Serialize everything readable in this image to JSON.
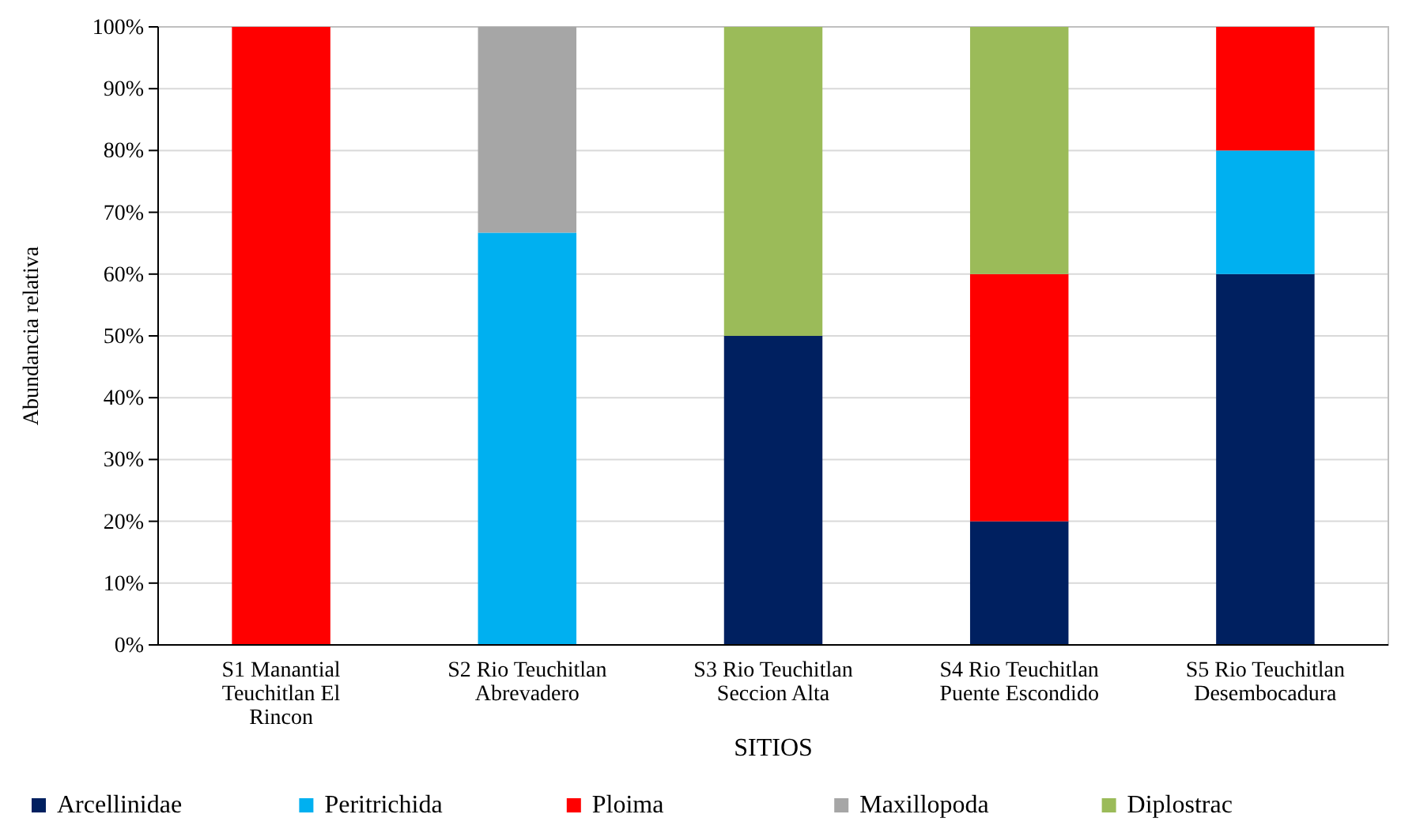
{
  "chart_data": {
    "type": "bar",
    "stacked": true,
    "xlabel": "SITIOS",
    "ylabel": "Abundancia relativa",
    "categories": [
      "S1 Manantial\nTeuchitlan El\nRincon",
      "S2 Rio Teuchitlan\nAbrevadero",
      "S3 Rio Teuchitlan\nSeccion Alta",
      "S4 Rio Teuchitlan\nPuente Escondido",
      "S5 Rio Teuchitlan\nDesembocadura"
    ],
    "series": [
      {
        "name": "Arcellinidae",
        "color": "#002060",
        "values": [
          0,
          0,
          50,
          20,
          60
        ]
      },
      {
        "name": "Peritrichida",
        "color": "#00b0f0",
        "values": [
          0,
          66.7,
          0,
          0,
          20
        ]
      },
      {
        "name": "Ploima",
        "color": "#ff0000",
        "values": [
          100,
          0,
          0,
          40,
          20
        ]
      },
      {
        "name": "Maxillopoda",
        "color": "#a6a6a6",
        "values": [
          0,
          33.3,
          0,
          0,
          0
        ]
      },
      {
        "name": "Diplostrac",
        "color": "#9bbb59",
        "values": [
          0,
          0,
          50,
          40,
          0
        ]
      }
    ],
    "ylim": [
      0,
      100
    ],
    "yticks": [
      {
        "value": 0,
        "label": "0%"
      },
      {
        "value": 10,
        "label": "10%"
      },
      {
        "value": 20,
        "label": "20%"
      },
      {
        "value": 30,
        "label": "30%"
      },
      {
        "value": 40,
        "label": "40%"
      },
      {
        "value": 50,
        "label": "50%"
      },
      {
        "value": 60,
        "label": "60%"
      },
      {
        "value": 70,
        "label": "70%"
      },
      {
        "value": 80,
        "label": "80%"
      },
      {
        "value": 90,
        "label": "90%"
      },
      {
        "value": 100,
        "label": "100%"
      }
    ],
    "grid": "y",
    "legend": "bottom"
  }
}
